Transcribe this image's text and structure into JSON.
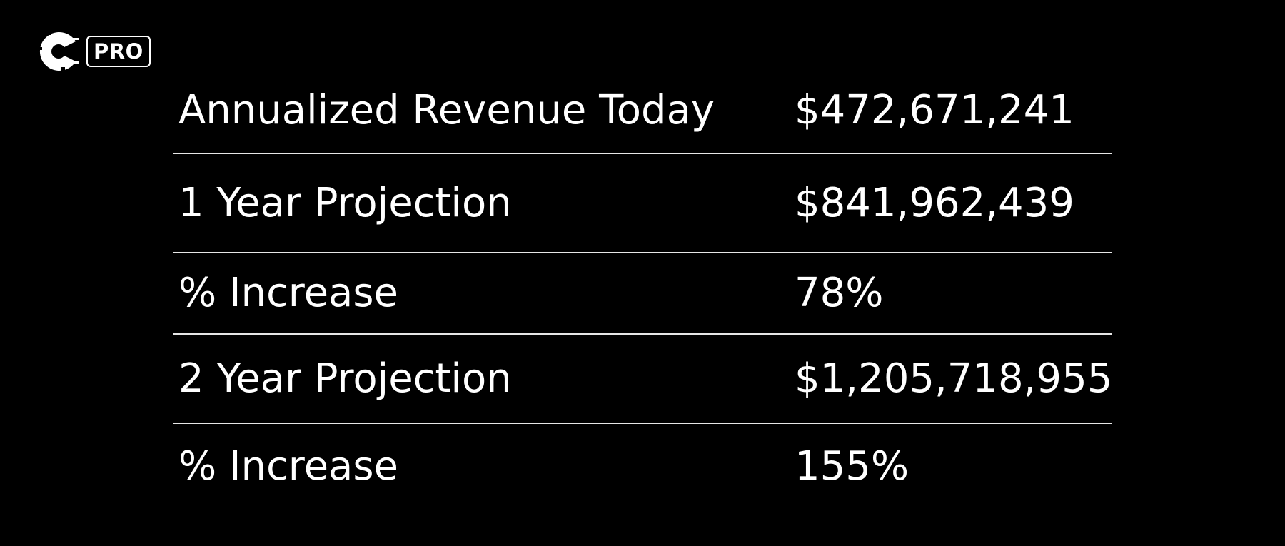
{
  "logo": {
    "icon": "c-logo-icon",
    "badge": "PRO"
  },
  "rows": [
    {
      "label": "Annualized Revenue Today",
      "value": "$472,671,241"
    },
    {
      "label": "1 Year Projection",
      "value": "$841,962,439"
    },
    {
      "label": "% Increase",
      "value": "78%"
    },
    {
      "label": "2 Year Projection",
      "value": "$1,205,718,955"
    },
    {
      "label": "% Increase",
      "value": "155%"
    }
  ],
  "colors": {
    "background": "#000000",
    "text": "#ffffff",
    "divider": "#e6e6e6"
  }
}
